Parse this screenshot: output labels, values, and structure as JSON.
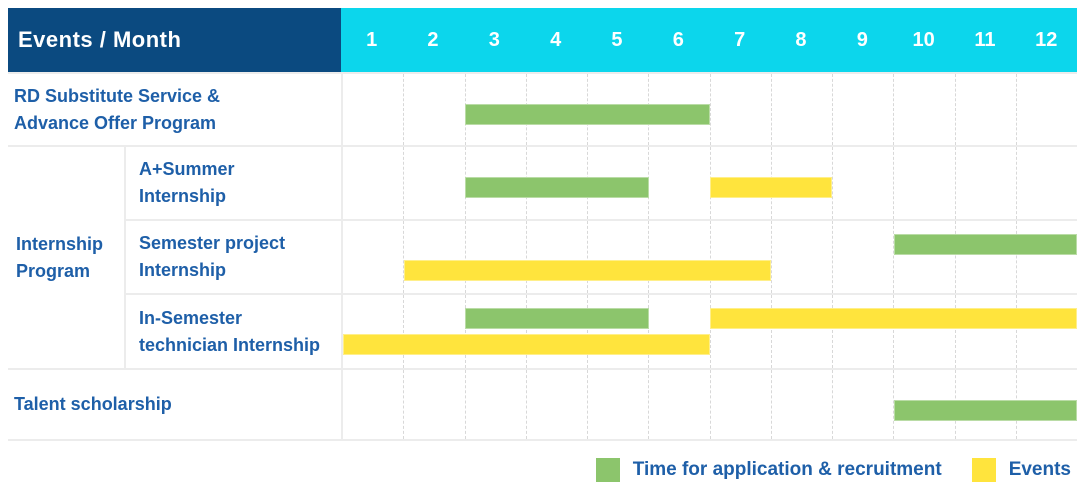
{
  "colors": {
    "navy": "#0b4a80",
    "cyan": "#0cd6ec",
    "text_blue": "#1e5fa8",
    "application": "#8cc56c",
    "events": "#ffe43d"
  },
  "chart_data": {
    "type": "bar",
    "subtype": "gantt-timeline",
    "title": "Events / Month",
    "x_axis": {
      "label": "Month",
      "range": [
        1,
        12
      ]
    },
    "months": [
      "1",
      "2",
      "3",
      "4",
      "5",
      "6",
      "7",
      "8",
      "9",
      "10",
      "11",
      "12"
    ],
    "group_label_lines": [
      "Internship",
      "Program"
    ],
    "rows": [
      {
        "id": "rd-substitute",
        "label_lines": [
          "RD Substitute Service &",
          "Advance Offer Program"
        ],
        "group": null,
        "bar_lines": 1,
        "bars": [
          {
            "type": "application",
            "start": 3,
            "end": 6,
            "line": 1
          }
        ]
      },
      {
        "id": "a-plus-summer-internship",
        "label_lines": [
          "A+Summer",
          "Internship"
        ],
        "group": "Internship Program",
        "bar_lines": 1,
        "bars": [
          {
            "type": "application",
            "start": 3,
            "end": 5,
            "line": 1
          },
          {
            "type": "events",
            "start": 7,
            "end": 8,
            "line": 1
          }
        ]
      },
      {
        "id": "semester-project-internship",
        "label_lines": [
          "Semester project",
          "Internship"
        ],
        "group": "Internship Program",
        "bar_lines": 2,
        "bars": [
          {
            "type": "application",
            "start": 10,
            "end": 12,
            "line": 1
          },
          {
            "type": "events",
            "start": 2,
            "end": 7,
            "line": 2
          }
        ]
      },
      {
        "id": "in-semester-technician-internship",
        "label_lines": [
          "In-Semester",
          "technician Internship"
        ],
        "group": "Internship Program",
        "bar_lines": 2,
        "bars": [
          {
            "type": "application",
            "start": 3,
            "end": 5,
            "line": 1
          },
          {
            "type": "events",
            "start": 7,
            "end": 12,
            "line": 1
          },
          {
            "type": "events",
            "start": 1,
            "end": 6,
            "line": 2
          }
        ]
      },
      {
        "id": "talent-scholarship",
        "label_lines": [
          "Talent scholarship"
        ],
        "group": null,
        "bar_lines": 1,
        "bars": [
          {
            "type": "application",
            "start": 10,
            "end": 12,
            "line": 1
          }
        ]
      }
    ]
  },
  "header": {
    "title": "Events / Month"
  },
  "legend": {
    "items": [
      {
        "type": "application",
        "label": "Time for application & recruitment"
      },
      {
        "type": "events",
        "label": "Events"
      }
    ]
  }
}
